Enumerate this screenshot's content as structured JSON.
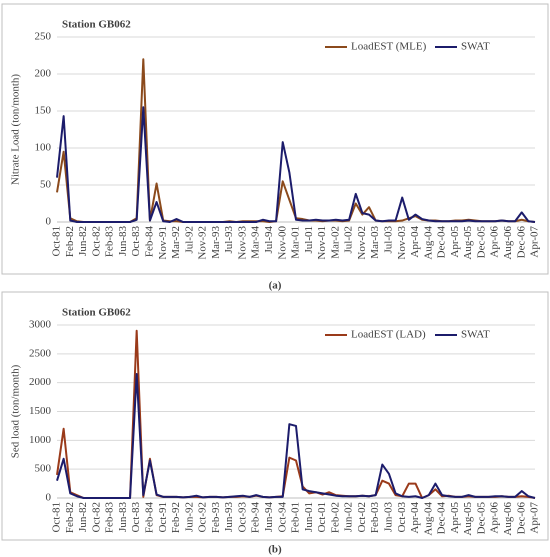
{
  "chart_data": [
    {
      "type": "line",
      "title": "Station GB062",
      "ylabel": "Nitrate Load (ton/month)",
      "caption": "(a)",
      "categories": [
        "Oct-81",
        null,
        "Feb-82",
        null,
        "Jun-82",
        null,
        "Oct-82",
        null,
        "Feb-83",
        null,
        "Jun-83",
        null,
        "Oct-83",
        null,
        "Feb-84",
        null,
        "Nov-91",
        null,
        "Mar-92",
        null,
        "Jul-92",
        null,
        "Nov-92",
        null,
        "Mar-93",
        null,
        "Jul-93",
        null,
        "Nov-93",
        null,
        "Mar-94",
        null,
        "Jul-94",
        null,
        "Nov-00",
        null,
        "Mar-01",
        null,
        "Jul-01",
        null,
        "Nov-01",
        null,
        "Mar-02",
        null,
        "Jul-02",
        null,
        "Nov-02",
        null,
        "Mar-03",
        null,
        "Jul-03",
        null,
        "Nov-03",
        null,
        "Apr-04",
        null,
        "Aug-04",
        null,
        "Dec-04",
        null,
        "Apr-05",
        null,
        "Aug-05",
        null,
        "Dec-05",
        null,
        "Apr-06",
        null,
        "Aug-06",
        null,
        "Dec-06",
        null,
        "Apr-07"
      ],
      "series": [
        {
          "name": "LoadEST (MLE)",
          "color": "#8b4a1c",
          "values": [
            40,
            95,
            5,
            1,
            0,
            0,
            0,
            0,
            0,
            0,
            0,
            0,
            5,
            220,
            2,
            52,
            2,
            1,
            1,
            0,
            0,
            0,
            0,
            0,
            0,
            0,
            1,
            0,
            1,
            1,
            1,
            1,
            0,
            1,
            55,
            30,
            5,
            4,
            2,
            2,
            1,
            2,
            2,
            1,
            2,
            25,
            10,
            20,
            2,
            1,
            1,
            1,
            2,
            5,
            8,
            3,
            2,
            2,
            1,
            1,
            2,
            2,
            3,
            2,
            1,
            1,
            1,
            2,
            1,
            1,
            3,
            1,
            0
          ]
        },
        {
          "name": "SWAT",
          "color": "#1c1c6b",
          "values": [
            60,
            143,
            2,
            0,
            0,
            0,
            0,
            0,
            0,
            0,
            0,
            0,
            3,
            155,
            2,
            27,
            1,
            0,
            4,
            0,
            0,
            0,
            0,
            0,
            0,
            0,
            0,
            0,
            0,
            0,
            0,
            3,
            1,
            1,
            108,
            67,
            3,
            2,
            2,
            3,
            2,
            2,
            3,
            2,
            3,
            38,
            12,
            10,
            2,
            1,
            2,
            2,
            33,
            3,
            10,
            4,
            2,
            1,
            1,
            1,
            1,
            1,
            2,
            1,
            1,
            1,
            1,
            2,
            1,
            1,
            13,
            1,
            0
          ]
        }
      ],
      "ylim": [
        0,
        250
      ],
      "yticks": [
        0,
        50,
        100,
        150,
        200,
        250
      ],
      "grid": true,
      "legend": "upper right"
    },
    {
      "type": "line",
      "title": "Station GB062",
      "ylabel": "Sed load (ton/month)",
      "caption": "(b)",
      "categories": [
        "Oct-81",
        null,
        "Feb-82",
        null,
        "Jun-82",
        null,
        "Oct-82",
        null,
        "Feb-83",
        null,
        "Jun-83",
        null,
        "Oct-83",
        null,
        "Feb-84",
        null,
        "Oct-91",
        null,
        "Feb-92",
        null,
        "Jun-92",
        null,
        "Oct-92",
        null,
        "Feb-93",
        null,
        "Jun-93",
        null,
        "Oct-93",
        null,
        "Feb-94",
        null,
        "Jun-94",
        null,
        "Oct-94",
        null,
        "Feb-01",
        null,
        "Jun-01",
        null,
        "Oct-01",
        null,
        "Feb-02",
        null,
        "Jun-02",
        null,
        "Oct-02",
        null,
        "Feb-03",
        null,
        "Jun-03",
        null,
        "Oct-03",
        null,
        "Apr-04",
        null,
        "Aug-04",
        null,
        "Dec-04",
        null,
        "Apr-05",
        null,
        "Aug-05",
        null,
        "Dec-05",
        null,
        "Apr-06",
        null,
        "Aug-06",
        null,
        "Dec-06",
        null,
        "Apr-07"
      ],
      "series": [
        {
          "name": "LoadEST (LAD)",
          "color": "#9a3a1a",
          "values": [
            400,
            1200,
            100,
            50,
            0,
            0,
            0,
            0,
            0,
            0,
            0,
            0,
            2900,
            20,
            680,
            50,
            20,
            20,
            20,
            10,
            20,
            20,
            10,
            20,
            20,
            10,
            20,
            20,
            30,
            20,
            40,
            20,
            10,
            20,
            30,
            700,
            650,
            200,
            80,
            100,
            60,
            100,
            50,
            40,
            30,
            30,
            40,
            30,
            50,
            300,
            250,
            50,
            30,
            250,
            250,
            0,
            50,
            150,
            30,
            40,
            20,
            20,
            30,
            20,
            20,
            20,
            20,
            30,
            20,
            20,
            30,
            20,
            0
          ]
        },
        {
          "name": "SWAT",
          "color": "#1c1c6b",
          "values": [
            300,
            680,
            80,
            30,
            0,
            0,
            0,
            0,
            0,
            0,
            0,
            0,
            2150,
            50,
            650,
            60,
            20,
            20,
            20,
            10,
            20,
            40,
            10,
            20,
            20,
            10,
            20,
            30,
            40,
            20,
            50,
            20,
            10,
            20,
            20,
            1280,
            1250,
            150,
            120,
            100,
            80,
            60,
            40,
            30,
            30,
            30,
            40,
            30,
            50,
            580,
            420,
            80,
            30,
            20,
            30,
            0,
            50,
            250,
            50,
            30,
            20,
            20,
            50,
            20,
            20,
            20,
            30,
            30,
            20,
            20,
            120,
            30,
            0
          ]
        }
      ],
      "ylim": [
        0,
        3000
      ],
      "yticks": [
        0,
        500,
        1000,
        1500,
        2000,
        2500,
        3000
      ],
      "grid": true,
      "legend": "upper right"
    }
  ]
}
